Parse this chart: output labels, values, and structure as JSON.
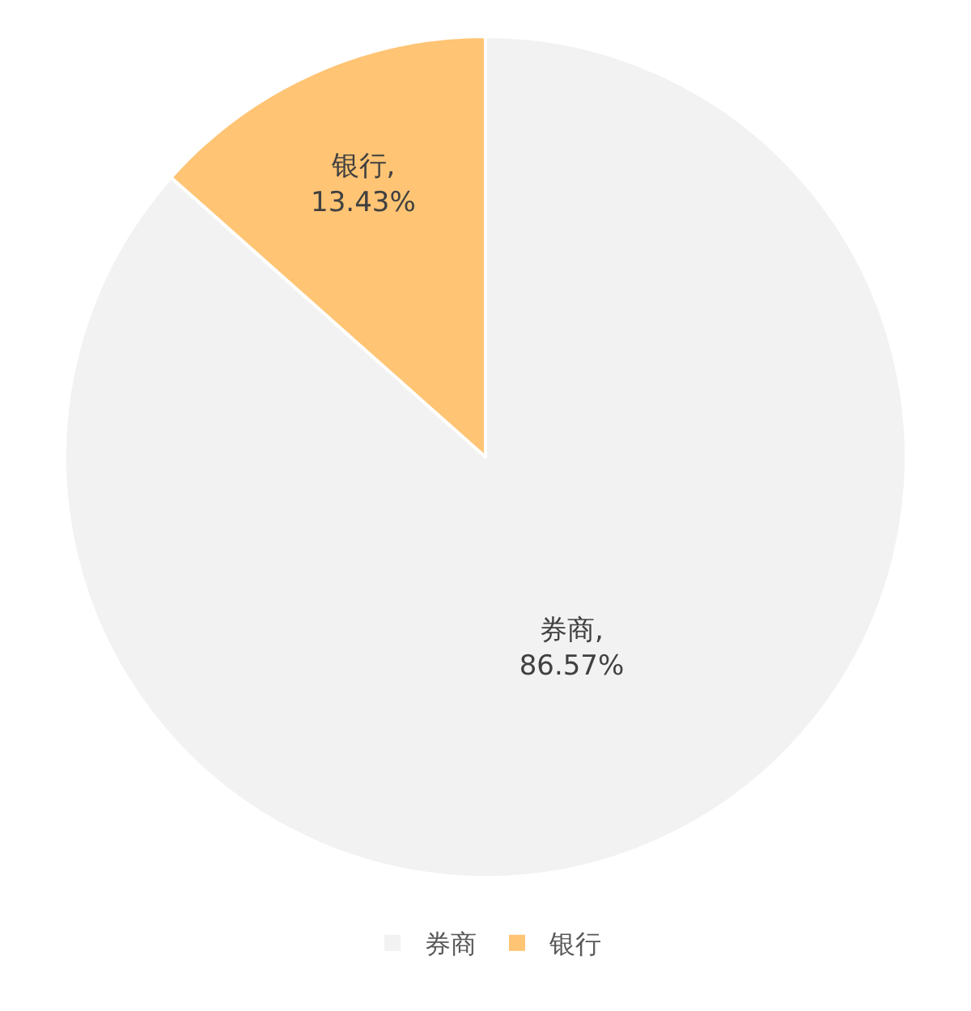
{
  "chart_data": {
    "type": "pie",
    "categories": [
      "券商",
      "银行"
    ],
    "values": [
      86.57,
      13.43
    ],
    "colors": [
      "#f2f2f2",
      "#ffc474"
    ],
    "value_labels": [
      "券商,\n86.57%",
      "银行,\n13.43%"
    ],
    "legend": "bottom"
  }
}
